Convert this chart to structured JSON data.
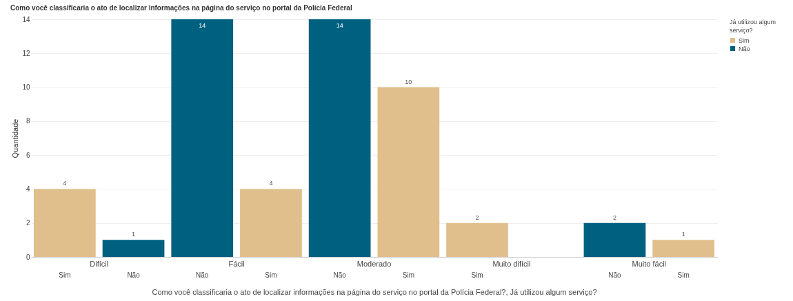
{
  "chart_data": {
    "type": "bar",
    "title": "Como você classificaria o ato de localizar informações na página do serviço no portal da Polícia Federal",
    "xlabel": "Como você classificaria o ato de localizar informações na página do serviço no portal da Polícia Federal?, Já utilizou algum serviço?",
    "ylabel": "Quantidade",
    "legend_title": "Já utilizou algum serviço?",
    "categories": [
      "Difícil",
      "Fácil",
      "Moderado",
      "Muito difícil",
      "Muito fácil"
    ],
    "series": [
      {
        "name": "Sim",
        "color": "#e0bf8c",
        "values": [
          4,
          4,
          10,
          2,
          1
        ]
      },
      {
        "name": "Não",
        "color": "#00607f",
        "values": [
          1,
          14,
          14,
          null,
          2
        ]
      }
    ],
    "ylim": [
      0,
      14
    ],
    "yticks": [
      0,
      2,
      4,
      6,
      8,
      10,
      12,
      14
    ],
    "grid": "y",
    "legend": "top right",
    "data_labels": true
  }
}
